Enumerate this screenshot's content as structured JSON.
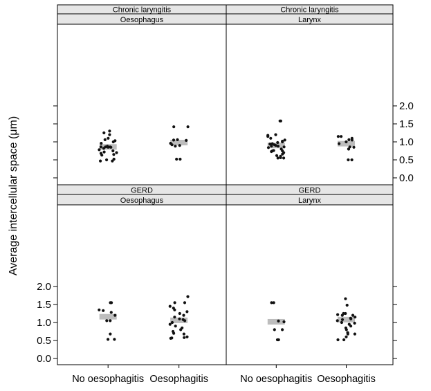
{
  "chart_data": {
    "type": "scatter",
    "ylabel": "Average intercellular space (μm)",
    "ylim": [
      -0.1,
      2.35
    ],
    "yticks": [
      "0.0",
      "0.5",
      "1.0",
      "1.5",
      "2.0"
    ],
    "categories": [
      "No oesophagitis",
      "Oesophagitis"
    ],
    "colors": {
      "points": "#111111",
      "mean_bar": "#bdbdbd",
      "strip_bg": "#e6e6e6",
      "frame": "#000000"
    },
    "panels": [
      {
        "strip_top": "Chronic laryngitis",
        "strip_bottom": "Oesophagus",
        "groups": [
          {
            "category": "No oesophagitis",
            "mean": 0.86,
            "values": [
              0.47,
              0.47,
              0.5,
              0.52,
              0.63,
              0.65,
              0.68,
              0.7,
              0.72,
              0.75,
              0.78,
              0.82,
              0.85,
              0.85,
              0.86,
              0.86,
              0.86,
              0.87,
              0.88,
              0.96,
              1.0,
              1.03,
              1.06,
              1.1,
              1.2,
              1.25,
              1.3
            ]
          },
          {
            "category": "Oesophagitis",
            "mean": 0.98,
            "values": [
              0.52,
              0.52,
              0.88,
              0.9,
              0.92,
              0.96,
              1.04,
              1.05,
              1.06,
              1.42,
              1.42
            ]
          }
        ]
      },
      {
        "strip_top": "Chronic laryngitis",
        "strip_bottom": "Larynx",
        "groups": [
          {
            "category": "No oesophagitis",
            "mean": 0.9,
            "values": [
              0.55,
              0.55,
              0.56,
              0.6,
              0.62,
              0.66,
              0.7,
              0.73,
              0.75,
              0.75,
              0.76,
              0.8,
              0.84,
              0.86,
              0.88,
              0.88,
              0.9,
              0.92,
              0.94,
              0.95,
              0.98,
              1.0,
              1.02,
              1.05,
              1.1,
              1.15,
              1.18,
              1.2,
              1.58,
              1.58
            ]
          },
          {
            "category": "Oesophagitis",
            "mean": 0.95,
            "values": [
              0.5,
              0.5,
              0.8,
              0.8,
              0.85,
              0.86,
              0.95,
              1.0,
              1.05,
              1.06,
              1.1,
              1.15,
              1.15
            ]
          }
        ]
      },
      {
        "strip_top": "GERD",
        "strip_bottom": "Oesophagus",
        "groups": [
          {
            "category": "No oesophagitis",
            "mean": 1.16,
            "values": [
              0.53,
              0.53,
              0.68,
              1.05,
              1.05,
              1.2,
              1.28,
              1.33,
              1.35,
              1.55,
              1.55
            ]
          },
          {
            "category": "Oesophagitis",
            "mean": 1.06,
            "values": [
              0.56,
              0.57,
              0.58,
              0.6,
              0.68,
              0.7,
              0.75,
              0.8,
              0.85,
              0.9,
              0.95,
              1.0,
              1.05,
              1.08,
              1.1,
              1.15,
              1.2,
              1.25,
              1.3,
              1.35,
              1.4,
              1.45,
              1.55,
              1.55,
              1.72
            ]
          }
        ]
      },
      {
        "strip_top": "GERD",
        "strip_bottom": "Larynx",
        "groups": [
          {
            "category": "No oesophagitis",
            "mean": 1.02,
            "values": [
              0.52,
              0.52,
              0.8,
              0.8,
              1.02,
              1.04,
              1.55,
              1.55
            ]
          },
          {
            "category": "Oesophagitis",
            "mean": 1.08,
            "values": [
              0.52,
              0.52,
              0.6,
              0.68,
              0.68,
              0.72,
              0.8,
              0.85,
              0.9,
              0.95,
              0.98,
              1.0,
              1.05,
              1.08,
              1.1,
              1.12,
              1.15,
              1.2,
              1.2,
              1.22,
              1.25,
              1.25,
              1.48,
              1.66
            ]
          }
        ]
      }
    ]
  }
}
